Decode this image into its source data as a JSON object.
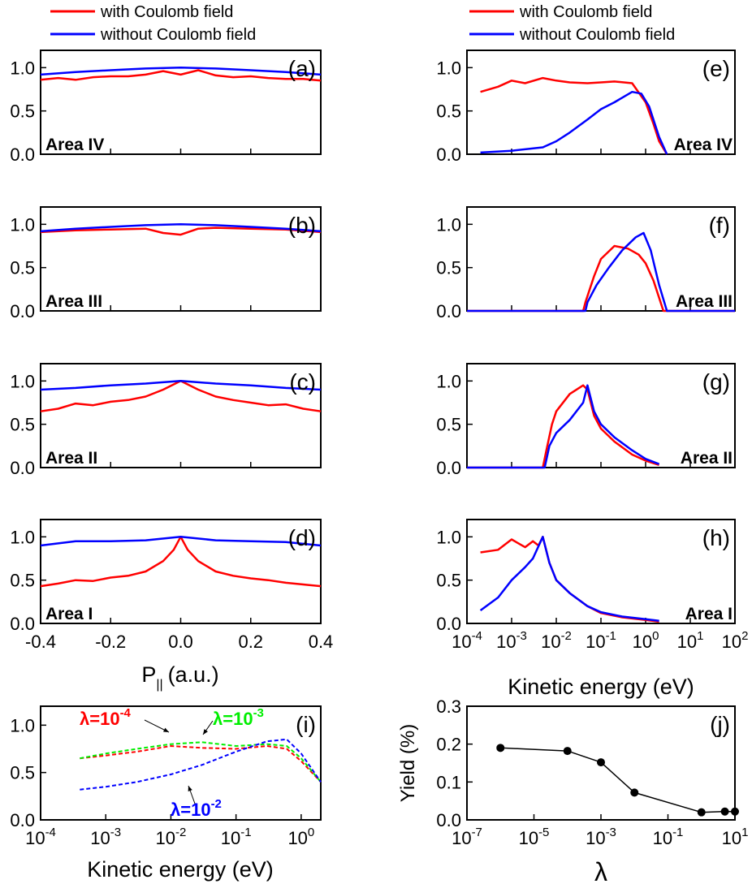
{
  "colors": {
    "with": "#ff0000",
    "without": "#0000ff",
    "lam1": "#ff0000",
    "lam2": "#00ee00",
    "lam3": "#0000ff",
    "yield": "#000000"
  },
  "legend": {
    "with": "with Coulomb field",
    "without": "without Coulomb field"
  },
  "labels": {
    "momentum_axis": "P",
    "momentum_sub": "||",
    "momentum_unit": "(a.u.)",
    "energy_axis": "Kinetic energy (eV)",
    "yield_axis": "Yield (%)",
    "lambda_axis": "λ",
    "lambda_prefix": "λ=10",
    "lam_exp1": "-4",
    "lam_exp2": "-3",
    "lam_exp3": "-2"
  },
  "chart_data": [
    {
      "panel": "(a)",
      "area": "Area IV",
      "type": "line",
      "xlim": [
        -0.4,
        0.4
      ],
      "ylim": [
        0,
        1.2
      ],
      "xticks": [
        "-0.4",
        "-0.2",
        "0.0",
        "0.2",
        "0.4"
      ],
      "yticks": [
        "0.0",
        "0.5",
        "1.0"
      ],
      "series": [
        {
          "name": "with Coulomb field",
          "x": [
            -0.4,
            -0.35,
            -0.3,
            -0.25,
            -0.2,
            -0.15,
            -0.1,
            -0.05,
            0,
            0.05,
            0.1,
            0.15,
            0.2,
            0.25,
            0.3,
            0.35,
            0.4
          ],
          "y": [
            0.86,
            0.88,
            0.86,
            0.89,
            0.9,
            0.9,
            0.92,
            0.96,
            0.92,
            0.97,
            0.91,
            0.89,
            0.9,
            0.88,
            0.87,
            0.87,
            0.85
          ]
        },
        {
          "name": "without Coulomb field",
          "x": [
            -0.4,
            -0.3,
            -0.2,
            -0.1,
            0,
            0.1,
            0.2,
            0.3,
            0.4
          ],
          "y": [
            0.92,
            0.95,
            0.97,
            0.99,
            1.0,
            0.99,
            0.97,
            0.95,
            0.92
          ]
        }
      ]
    },
    {
      "panel": "(b)",
      "area": "Area III",
      "type": "line",
      "xlim": [
        -0.4,
        0.4
      ],
      "ylim": [
        0,
        1.2
      ],
      "xticks": [
        "-0.4",
        "-0.2",
        "0.0",
        "0.2",
        "0.4"
      ],
      "yticks": [
        "0.0",
        "0.5",
        "1.0"
      ],
      "series": [
        {
          "name": "with Coulomb field",
          "x": [
            -0.4,
            -0.3,
            -0.2,
            -0.1,
            -0.05,
            0,
            0.05,
            0.1,
            0.2,
            0.3,
            0.4
          ],
          "y": [
            0.91,
            0.93,
            0.94,
            0.95,
            0.9,
            0.88,
            0.95,
            0.96,
            0.95,
            0.94,
            0.91
          ]
        },
        {
          "name": "without Coulomb field",
          "x": [
            -0.4,
            -0.3,
            -0.2,
            -0.1,
            0,
            0.1,
            0.2,
            0.3,
            0.4
          ],
          "y": [
            0.92,
            0.95,
            0.97,
            0.99,
            1.0,
            0.99,
            0.97,
            0.95,
            0.92
          ]
        }
      ]
    },
    {
      "panel": "(c)",
      "area": "Area II",
      "type": "line",
      "xlim": [
        -0.4,
        0.4
      ],
      "ylim": [
        0,
        1.2
      ],
      "xticks": [
        "-0.4",
        "-0.2",
        "0.0",
        "0.2",
        "0.4"
      ],
      "yticks": [
        "0.0",
        "0.5",
        "1.0"
      ],
      "series": [
        {
          "name": "with Coulomb field",
          "x": [
            -0.4,
            -0.35,
            -0.3,
            -0.25,
            -0.2,
            -0.15,
            -0.1,
            -0.05,
            0,
            0.05,
            0.1,
            0.15,
            0.2,
            0.25,
            0.3,
            0.35,
            0.4
          ],
          "y": [
            0.65,
            0.68,
            0.74,
            0.72,
            0.76,
            0.78,
            0.82,
            0.9,
            1.0,
            0.9,
            0.82,
            0.78,
            0.75,
            0.72,
            0.73,
            0.68,
            0.65
          ]
        },
        {
          "name": "without Coulomb field",
          "x": [
            -0.4,
            -0.3,
            -0.2,
            -0.1,
            0,
            0.1,
            0.2,
            0.3,
            0.4
          ],
          "y": [
            0.9,
            0.92,
            0.95,
            0.97,
            1.0,
            0.97,
            0.95,
            0.92,
            0.9
          ]
        }
      ]
    },
    {
      "panel": "(d)",
      "area": "Area I",
      "type": "line",
      "xlim": [
        -0.4,
        0.4
      ],
      "ylim": [
        0,
        1.2
      ],
      "xticks": [
        "-0.4",
        "-0.2",
        "0.0",
        "0.2",
        "0.4"
      ],
      "yticks": [
        "0.0",
        "0.5",
        "1.0"
      ],
      "series": [
        {
          "name": "with Coulomb field",
          "x": [
            -0.4,
            -0.35,
            -0.3,
            -0.25,
            -0.2,
            -0.15,
            -0.1,
            -0.05,
            -0.02,
            0,
            0.02,
            0.05,
            0.1,
            0.15,
            0.2,
            0.25,
            0.3,
            0.35,
            0.4
          ],
          "y": [
            0.43,
            0.46,
            0.5,
            0.49,
            0.53,
            0.55,
            0.6,
            0.72,
            0.85,
            1.0,
            0.85,
            0.72,
            0.6,
            0.55,
            0.52,
            0.5,
            0.47,
            0.45,
            0.43
          ]
        },
        {
          "name": "without Coulomb field",
          "x": [
            -0.4,
            -0.3,
            -0.2,
            -0.1,
            0,
            0.1,
            0.2,
            0.3,
            0.4
          ],
          "y": [
            0.9,
            0.95,
            0.95,
            0.96,
            1.0,
            0.96,
            0.95,
            0.94,
            0.9
          ]
        }
      ]
    },
    {
      "panel": "(e)",
      "area": "Area IV",
      "type": "line",
      "xscale": "log",
      "xlim": [
        0.0001,
        100
      ],
      "ylim": [
        0,
        1.2
      ],
      "xticks": [
        "10-4",
        "10-3",
        "10-2",
        "10-1",
        "100",
        "101",
        "102"
      ],
      "yticks": [
        "0.0",
        "0.5",
        "1.0"
      ],
      "series": [
        {
          "name": "with Coulomb field",
          "x": [
            0.0002,
            0.0005,
            0.001,
            0.002,
            0.005,
            0.01,
            0.02,
            0.05,
            0.1,
            0.2,
            0.5,
            1,
            1.5,
            2,
            3
          ],
          "y": [
            0.72,
            0.78,
            0.85,
            0.82,
            0.88,
            0.85,
            0.83,
            0.82,
            0.83,
            0.84,
            0.82,
            0.6,
            0.35,
            0.15,
            0
          ]
        },
        {
          "name": "without Coulomb field",
          "x": [
            0.0002,
            0.001,
            0.005,
            0.01,
            0.02,
            0.05,
            0.1,
            0.2,
            0.5,
            0.8,
            1.2,
            2,
            3
          ],
          "y": [
            0.02,
            0.04,
            0.08,
            0.15,
            0.25,
            0.4,
            0.52,
            0.6,
            0.72,
            0.7,
            0.55,
            0.2,
            0
          ]
        }
      ]
    },
    {
      "panel": "(f)",
      "area": "Area III",
      "type": "line",
      "xscale": "log",
      "xlim": [
        0.0001,
        100
      ],
      "ylim": [
        0,
        1.2
      ],
      "xticks": [
        "10-4",
        "10-3",
        "10-2",
        "10-1",
        "100",
        "101",
        "102"
      ],
      "yticks": [
        "0.0",
        "0.5",
        "1.0"
      ],
      "series": [
        {
          "name": "with Coulomb field",
          "x": [
            0.0001,
            0.04,
            0.045,
            0.07,
            0.1,
            0.2,
            0.4,
            0.7,
            1,
            1.5,
            2.5,
            100
          ],
          "y": [
            0,
            0,
            0.1,
            0.4,
            0.6,
            0.75,
            0.72,
            0.65,
            0.55,
            0.35,
            0,
            0
          ]
        },
        {
          "name": "without Coulomb field",
          "x": [
            0.0001,
            0.045,
            0.05,
            0.08,
            0.15,
            0.3,
            0.6,
            0.9,
            1.3,
            2,
            3,
            100
          ],
          "y": [
            0,
            0,
            0.1,
            0.3,
            0.5,
            0.7,
            0.85,
            0.9,
            0.7,
            0.3,
            0,
            0
          ]
        }
      ]
    },
    {
      "panel": "(g)",
      "area": "Area II",
      "type": "line",
      "xscale": "log",
      "xlim": [
        0.0001,
        100
      ],
      "ylim": [
        0,
        1.2
      ],
      "xticks": [
        "10-4",
        "10-3",
        "10-2",
        "10-1",
        "100",
        "101",
        "102"
      ],
      "yticks": [
        "0.0",
        "0.5",
        "1.0"
      ],
      "series": [
        {
          "name": "with Coulomb field",
          "x": [
            0.0001,
            0.005,
            0.006,
            0.008,
            0.01,
            0.02,
            0.04,
            0.05,
            0.07,
            0.1,
            0.2,
            0.5,
            1,
            2
          ],
          "y": [
            0,
            0,
            0.2,
            0.5,
            0.65,
            0.85,
            0.95,
            0.9,
            0.6,
            0.45,
            0.3,
            0.15,
            0.08,
            0.03
          ]
        },
        {
          "name": "without Coulomb field",
          "x": [
            0.0001,
            0.0055,
            0.007,
            0.01,
            0.02,
            0.04,
            0.05,
            0.07,
            0.1,
            0.2,
            0.5,
            1,
            2
          ],
          "y": [
            0,
            0,
            0.25,
            0.4,
            0.55,
            0.75,
            0.95,
            0.65,
            0.5,
            0.35,
            0.2,
            0.1,
            0.04
          ]
        }
      ]
    },
    {
      "panel": "(h)",
      "area": "Area I",
      "type": "line",
      "xscale": "log",
      "xlim": [
        0.0001,
        100
      ],
      "ylim": [
        0,
        1.2
      ],
      "xticks": [
        "10-4",
        "10-3",
        "10-2",
        "10-1",
        "100",
        "101",
        "102"
      ],
      "yticks": [
        "0.0",
        "0.5",
        "1.0"
      ],
      "series": [
        {
          "name": "with Coulomb field",
          "x": [
            0.0002,
            0.0005,
            0.001,
            0.002,
            0.003,
            0.004,
            0.005,
            0.007,
            0.01,
            0.02,
            0.05,
            0.1,
            0.3,
            1,
            2
          ],
          "y": [
            0.82,
            0.85,
            0.97,
            0.88,
            0.95,
            0.9,
            1.0,
            0.7,
            0.5,
            0.35,
            0.2,
            0.12,
            0.07,
            0.04,
            0.02
          ]
        },
        {
          "name": "without Coulomb field",
          "x": [
            0.0002,
            0.0005,
            0.001,
            0.002,
            0.003,
            0.005,
            0.007,
            0.01,
            0.02,
            0.05,
            0.1,
            0.3,
            1,
            2
          ],
          "y": [
            0.15,
            0.3,
            0.5,
            0.65,
            0.75,
            1.0,
            0.7,
            0.5,
            0.35,
            0.2,
            0.13,
            0.08,
            0.05,
            0.03
          ]
        }
      ]
    },
    {
      "panel": "(i)",
      "type": "line",
      "xscale": "log",
      "xlim": [
        0.0001,
        2
      ],
      "ylim": [
        0,
        1.2
      ],
      "xticks": [
        "10-4",
        "10-3",
        "10-2",
        "10-1",
        "100"
      ],
      "yticks": [
        "0.0",
        "0.5",
        "1.0"
      ],
      "series": [
        {
          "name": "λ=10-4",
          "x": [
            0.0004,
            0.001,
            0.003,
            0.01,
            0.03,
            0.1,
            0.3,
            0.6,
            1,
            2
          ],
          "y": [
            0.65,
            0.68,
            0.72,
            0.78,
            0.76,
            0.75,
            0.78,
            0.75,
            0.62,
            0.4
          ]
        },
        {
          "name": "λ=10-3",
          "x": [
            0.0004,
            0.001,
            0.003,
            0.01,
            0.03,
            0.1,
            0.3,
            0.6,
            1,
            2
          ],
          "y": [
            0.65,
            0.7,
            0.75,
            0.8,
            0.82,
            0.78,
            0.8,
            0.78,
            0.65,
            0.4
          ]
        },
        {
          "name": "λ=10-2",
          "x": [
            0.0004,
            0.001,
            0.003,
            0.01,
            0.03,
            0.1,
            0.3,
            0.6,
            1,
            2
          ],
          "y": [
            0.32,
            0.35,
            0.4,
            0.48,
            0.58,
            0.72,
            0.83,
            0.85,
            0.7,
            0.4
          ]
        }
      ]
    },
    {
      "panel": "(j)",
      "type": "scatter",
      "xscale": "log",
      "xlim": [
        1e-07,
        10
      ],
      "ylim": [
        0,
        0.3
      ],
      "xticks": [
        "10-7",
        "10-5",
        "10-3",
        "10-1",
        "101"
      ],
      "yticks": [
        "0.0",
        "0.1",
        "0.2",
        "0.3"
      ],
      "series": [
        {
          "name": "",
          "x": [
            1e-06,
            0.0001,
            0.001,
            0.01,
            1,
            5,
            10
          ],
          "y": [
            0.19,
            0.182,
            0.152,
            0.072,
            0.02,
            0.022,
            0.022
          ]
        }
      ]
    }
  ]
}
